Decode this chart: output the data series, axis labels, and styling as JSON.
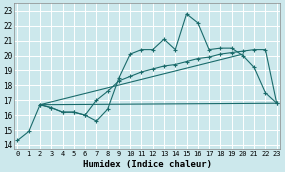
{
  "xlabel": "Humidex (Indice chaleur)",
  "bg_color": "#cce8ec",
  "grid_color": "#b0d4d8",
  "line_color": "#1a6b6b",
  "x_ticks": [
    0,
    1,
    2,
    3,
    4,
    5,
    6,
    7,
    8,
    9,
    10,
    11,
    12,
    13,
    14,
    15,
    16,
    17,
    18,
    19,
    20,
    21,
    22,
    23
  ],
  "y_ticks": [
    14,
    15,
    16,
    17,
    18,
    19,
    20,
    21,
    22,
    23
  ],
  "xlim": [
    -0.3,
    23.3
  ],
  "ylim": [
    13.7,
    23.5
  ],
  "line1_x": [
    0,
    1,
    2,
    3,
    4,
    5,
    6,
    7,
    8,
    9,
    10,
    11,
    12,
    13,
    14,
    15,
    16,
    17,
    18,
    19,
    20,
    21,
    22,
    23
  ],
  "line1_y": [
    14.3,
    14.9,
    16.7,
    16.5,
    16.2,
    16.2,
    16.0,
    15.6,
    16.4,
    18.5,
    20.1,
    20.4,
    20.4,
    21.1,
    20.4,
    22.8,
    22.2,
    20.4,
    20.5,
    20.5,
    20.0,
    19.2,
    17.5,
    16.8
  ],
  "line2_x": [
    2,
    3,
    4,
    5,
    6,
    7,
    8,
    9,
    10,
    11,
    12,
    13,
    14,
    15,
    16,
    17,
    18,
    19,
    20,
    21,
    22,
    23
  ],
  "line2_y": [
    16.7,
    16.5,
    16.2,
    16.2,
    16.0,
    17.0,
    17.6,
    18.3,
    18.6,
    18.9,
    19.1,
    19.3,
    19.4,
    19.6,
    19.8,
    19.9,
    20.1,
    20.2,
    20.3,
    20.4,
    20.4,
    16.8
  ],
  "line3_x": [
    2,
    23
  ],
  "line3_y": [
    16.7,
    16.8
  ],
  "line4_x": [
    2,
    20
  ],
  "line4_y": [
    16.7,
    20.1
  ]
}
